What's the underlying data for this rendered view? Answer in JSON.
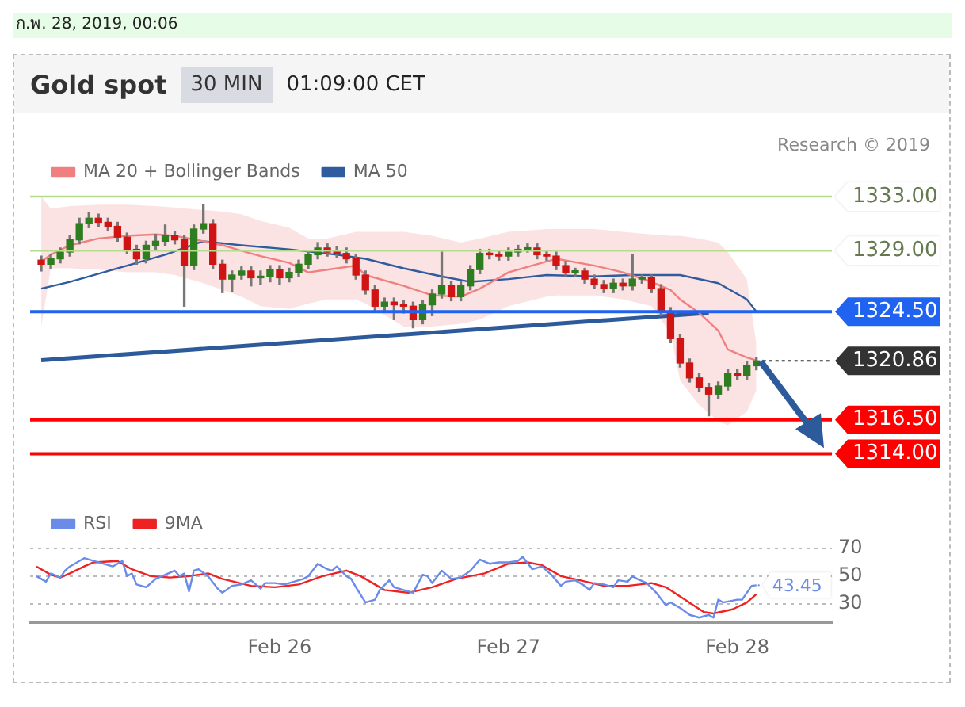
{
  "chart_data": [
    {
      "type": "candlestick",
      "title": "Gold spot",
      "subtitle": "30 MIN",
      "annotations": [
        "ก.พ. 28, 2019, 00:06",
        "01:09:00 CET",
        "Research © 2019"
      ],
      "x": [
        "2019-02-24T23:00",
        "2019-02-25T00:00",
        "2019-02-25T01:00",
        "2019-02-25T02:00",
        "2019-02-25T03:00",
        "2019-02-25T04:00",
        "2019-02-25T05:00",
        "2019-02-25T06:00",
        "2019-02-25T07:00",
        "2019-02-25T08:00",
        "2019-02-25T09:00",
        "2019-02-25T10:00",
        "2019-02-25T11:00",
        "2019-02-25T12:00",
        "2019-02-25T13:00",
        "2019-02-25T14:00",
        "2019-02-25T15:00",
        "2019-02-25T16:00",
        "2019-02-25T17:00",
        "2019-02-25T18:00",
        "2019-02-25T19:00",
        "2019-02-25T20:00",
        "2019-02-25T21:00",
        "2019-02-25T22:00",
        "2019-02-25T23:00",
        "2019-02-26T00:00",
        "2019-02-26T01:00",
        "2019-02-26T02:00",
        "2019-02-26T03:00",
        "2019-02-26T04:00",
        "2019-02-26T05:00",
        "2019-02-26T06:00",
        "2019-02-26T07:00",
        "2019-02-26T08:00",
        "2019-02-26T09:00",
        "2019-02-26T10:00",
        "2019-02-26T11:00",
        "2019-02-26T12:00",
        "2019-02-26T13:00",
        "2019-02-26T14:00",
        "2019-02-26T15:00",
        "2019-02-26T16:00",
        "2019-02-26T17:00",
        "2019-02-26T18:00",
        "2019-02-26T19:00",
        "2019-02-26T20:00",
        "2019-02-26T21:00",
        "2019-02-26T22:00",
        "2019-02-26T23:00",
        "2019-02-27T00:00",
        "2019-02-27T01:00",
        "2019-02-27T02:00",
        "2019-02-27T03:00",
        "2019-02-27T04:00",
        "2019-02-27T05:00",
        "2019-02-27T06:00",
        "2019-02-27T07:00",
        "2019-02-27T08:00",
        "2019-02-27T09:00",
        "2019-02-27T10:00",
        "2019-02-27T11:00",
        "2019-02-27T12:00",
        "2019-02-27T13:00",
        "2019-02-27T14:00",
        "2019-02-27T15:00",
        "2019-02-27T16:00",
        "2019-02-27T17:00",
        "2019-02-27T18:00",
        "2019-02-27T19:00",
        "2019-02-27T20:00",
        "2019-02-27T21:00",
        "2019-02-27T22:00",
        "2019-02-27T23:00",
        "2019-02-28T00:00",
        "2019-02-28T01:00",
        "2019-02-28T02:00"
      ],
      "ohlc": [
        [
          1328.3,
          1328.6,
          1327.5,
          1328.0
        ],
        [
          1328.0,
          1328.7,
          1327.7,
          1328.4
        ],
        [
          1328.4,
          1329.2,
          1328.1,
          1328.9
        ],
        [
          1328.9,
          1330.1,
          1328.6,
          1329.8
        ],
        [
          1329.8,
          1331.4,
          1329.5,
          1331.0
        ],
        [
          1331.0,
          1331.8,
          1330.7,
          1331.4
        ],
        [
          1331.4,
          1331.7,
          1330.8,
          1331.1
        ],
        [
          1331.1,
          1331.4,
          1330.5,
          1330.8
        ],
        [
          1330.8,
          1331.1,
          1329.7,
          1330.0
        ],
        [
          1330.0,
          1330.3,
          1328.8,
          1329.1
        ],
        [
          1329.1,
          1329.4,
          1328.0,
          1328.4
        ],
        [
          1328.4,
          1329.7,
          1328.1,
          1329.4
        ],
        [
          1329.4,
          1330.2,
          1329.1,
          1329.7
        ],
        [
          1329.7,
          1330.9,
          1329.4,
          1330.1
        ],
        [
          1330.1,
          1330.4,
          1329.5,
          1329.8
        ],
        [
          1329.8,
          1330.1,
          1324.9,
          1327.9
        ],
        [
          1327.9,
          1330.9,
          1327.6,
          1330.6
        ],
        [
          1330.6,
          1332.4,
          1330.3,
          1331.0
        ],
        [
          1331.0,
          1331.3,
          1327.7,
          1328.0
        ],
        [
          1328.0,
          1328.3,
          1325.9,
          1326.9
        ],
        [
          1326.9,
          1327.5,
          1326.0,
          1327.2
        ],
        [
          1327.2,
          1327.8,
          1326.9,
          1327.5
        ],
        [
          1327.5,
          1327.8,
          1326.4,
          1327.0
        ],
        [
          1327.0,
          1327.5,
          1326.5,
          1327.1
        ],
        [
          1327.1,
          1327.9,
          1326.7,
          1327.6
        ],
        [
          1327.6,
          1327.9,
          1326.5,
          1327.0
        ],
        [
          1327.0,
          1327.7,
          1326.7,
          1327.4
        ],
        [
          1327.4,
          1328.3,
          1327.1,
          1328.0
        ],
        [
          1328.0,
          1329.0,
          1327.7,
          1328.7
        ],
        [
          1328.7,
          1329.6,
          1328.4,
          1329.2
        ],
        [
          1329.2,
          1329.5,
          1328.6,
          1328.9
        ],
        [
          1328.9,
          1329.3,
          1328.5,
          1328.8
        ],
        [
          1328.8,
          1329.2,
          1328.1,
          1328.4
        ],
        [
          1328.4,
          1328.7,
          1326.9,
          1327.2
        ],
        [
          1327.2,
          1327.5,
          1325.8,
          1326.1
        ],
        [
          1326.1,
          1326.4,
          1324.5,
          1324.9
        ],
        [
          1324.9,
          1325.5,
          1324.6,
          1325.2
        ],
        [
          1325.2,
          1325.5,
          1323.9,
          1325.0
        ],
        [
          1325.0,
          1325.3,
          1324.4,
          1324.9
        ],
        [
          1324.9,
          1325.2,
          1323.3,
          1323.9
        ],
        [
          1323.9,
          1325.3,
          1323.6,
          1325.0
        ],
        [
          1325.0,
          1326.1,
          1324.2,
          1325.8
        ],
        [
          1325.8,
          1328.9,
          1325.5,
          1326.4
        ],
        [
          1326.4,
          1326.7,
          1325.3,
          1325.6
        ],
        [
          1325.6,
          1326.7,
          1325.3,
          1326.4
        ],
        [
          1326.4,
          1327.9,
          1326.1,
          1327.6
        ],
        [
          1327.6,
          1329.1,
          1327.3,
          1328.8
        ],
        [
          1328.8,
          1329.1,
          1328.4,
          1328.7
        ],
        [
          1328.7,
          1329.0,
          1328.3,
          1328.6
        ],
        [
          1328.6,
          1329.2,
          1328.3,
          1328.9
        ],
        [
          1328.9,
          1329.4,
          1328.6,
          1329.1
        ],
        [
          1329.1,
          1329.5,
          1328.9,
          1329.2
        ],
        [
          1329.2,
          1329.5,
          1328.4,
          1328.7
        ],
        [
          1328.7,
          1329.0,
          1328.3,
          1328.6
        ],
        [
          1328.6,
          1328.9,
          1327.6,
          1327.9
        ],
        [
          1327.9,
          1328.2,
          1327.1,
          1327.4
        ],
        [
          1327.4,
          1327.7,
          1327.1,
          1327.5
        ],
        [
          1327.5,
          1327.7,
          1326.6,
          1326.9
        ],
        [
          1326.9,
          1327.2,
          1326.2,
          1326.5
        ],
        [
          1326.5,
          1326.8,
          1325.9,
          1326.2
        ],
        [
          1326.2,
          1326.9,
          1325.9,
          1326.6
        ],
        [
          1326.6,
          1326.9,
          1326.1,
          1326.4
        ],
        [
          1326.4,
          1328.7,
          1326.1,
          1326.9
        ],
        [
          1326.9,
          1327.2,
          1326.6,
          1327.0
        ],
        [
          1327.0,
          1327.2,
          1325.9,
          1326.2
        ],
        [
          1326.2,
          1326.5,
          1324.2,
          1324.5
        ],
        [
          1324.5,
          1324.8,
          1322.2,
          1322.5
        ],
        [
          1322.5,
          1322.8,
          1320.4,
          1320.7
        ],
        [
          1320.7,
          1321.0,
          1319.3,
          1319.6
        ],
        [
          1319.6,
          1319.9,
          1318.6,
          1318.9
        ],
        [
          1318.9,
          1319.2,
          1316.8,
          1318.4
        ],
        [
          1318.4,
          1319.3,
          1318.1,
          1319.0
        ],
        [
          1319.0,
          1320.2,
          1318.7,
          1319.9
        ],
        [
          1319.9,
          1320.2,
          1319.5,
          1319.8
        ],
        [
          1319.8,
          1320.8,
          1319.5,
          1320.5
        ],
        [
          1320.5,
          1321.1,
          1320.2,
          1320.86
        ]
      ],
      "series": [
        {
          "name": "MA 20 + Bollinger Bands",
          "type": "line",
          "color": "#f08080",
          "x": [
            "2019-02-24T23:00",
            "2019-02-25T00:00",
            "2019-02-25T02:00",
            "2019-02-25T05:00",
            "2019-02-25T08:00",
            "2019-02-25T11:00",
            "2019-02-25T13:00",
            "2019-02-25T16:00",
            "2019-02-25T18:00",
            "2019-02-25T20:00",
            "2019-02-25T22:00",
            "2019-02-26T01:00",
            "2019-02-26T03:00",
            "2019-02-26T05:00",
            "2019-02-26T08:00",
            "2019-02-26T09:00",
            "2019-02-26T13:00",
            "2019-02-26T16:00",
            "2019-02-26T19:00",
            "2019-02-26T21:00",
            "2019-02-27T00:00",
            "2019-02-27T04:00",
            "2019-02-27T05:00",
            "2019-02-27T09:00",
            "2019-02-27T12:00",
            "2019-02-27T15:00",
            "2019-02-27T17:00",
            "2019-02-27T18:00",
            "2019-02-27T20:00",
            "2019-02-27T22:00",
            "2019-02-27T23:00",
            "2019-02-28T01:00",
            "2019-02-28T02:00"
          ],
          "values": [
            1328.2,
            1328.7,
            1329.4,
            1329.9,
            1330.1,
            1330.2,
            1330.1,
            1329.7,
            1329.4,
            1329.0,
            1328.6,
            1328.1,
            1327.4,
            1327.6,
            1327.9,
            1327.2,
            1326.4,
            1325.7,
            1325.6,
            1326.2,
            1327.4,
            1328.2,
            1328.4,
            1327.9,
            1327.4,
            1326.7,
            1326.1,
            1325.4,
            1324.4,
            1323.1,
            1321.7,
            1321.1,
            1320.9
          ],
          "upper": [
            1333.0,
            1332.1,
            1332.3,
            1332.4,
            1332.4,
            1332.3,
            1332.2,
            1332.0,
            1331.9,
            1331.7,
            1331.2,
            1330.7,
            1329.9,
            1329.9,
            1330.4,
            1330.4,
            1330.4,
            1330.1,
            1329.6,
            1329.9,
            1330.4,
            1330.6,
            1330.6,
            1330.6,
            1330.4,
            1330.2,
            1330.1,
            1330.1,
            1329.9,
            1329.6,
            1328.9,
            1326.9,
            1322.1
          ],
          "lower": [
            1323.4,
            1327.7,
            1327.7,
            1327.6,
            1327.4,
            1327.4,
            1327.2,
            1326.6,
            1326.1,
            1325.6,
            1324.9,
            1324.7,
            1325.1,
            1325.4,
            1325.4,
            1325.1,
            1323.4,
            1323.4,
            1323.6,
            1323.9,
            1324.9,
            1325.6,
            1325.7,
            1325.7,
            1325.4,
            1324.9,
            1322.9,
            1319.4,
            1317.6,
            1316.4,
            1316.1,
            1317.1,
            1318.7
          ]
        },
        {
          "name": "MA 50",
          "type": "line",
          "color": "#2f5c9e",
          "x": [
            "2019-02-24T23:00",
            "2019-02-25T02:00",
            "2019-02-25T08:00",
            "2019-02-25T12:00",
            "2019-02-25T16:00",
            "2019-02-25T20:00",
            "2019-02-26T01:00",
            "2019-02-26T06:00",
            "2019-02-26T09:00",
            "2019-02-26T13:00",
            "2019-02-26T17:00",
            "2019-02-26T20:00",
            "2019-02-27T00:00",
            "2019-02-27T04:00",
            "2019-02-27T09:00",
            "2019-02-27T13:00",
            "2019-02-27T18:00",
            "2019-02-27T22:00",
            "2019-02-28T01:00",
            "2019-02-28T02:00"
          ],
          "values": [
            1326.2,
            1326.7,
            1327.9,
            1328.7,
            1329.7,
            1329.4,
            1329.1,
            1328.7,
            1328.4,
            1327.7,
            1327.1,
            1326.7,
            1326.9,
            1327.2,
            1327.1,
            1327.2,
            1327.2,
            1326.6,
            1325.4,
            1324.5
          ]
        },
        {
          "type": "line",
          "color": "#2d5a9a",
          "x": [
            "2019-02-24T23:00",
            "2019-02-27T21:00"
          ],
          "values": [
            1320.9,
            1324.4
          ]
        }
      ],
      "ref_lines": [
        {
          "axis": "y",
          "value": 1333,
          "color": "#b5dc8c"
        },
        {
          "axis": "y",
          "value": 1329,
          "color": "#b5dc8c"
        },
        {
          "axis": "y",
          "value": 1324.5,
          "color": "#1f63f0"
        },
        {
          "axis": "y",
          "value": 1320.86,
          "color": "#333333",
          "line_style": "dotted"
        },
        {
          "axis": "y",
          "value": 1316.5,
          "color": "#ff0000"
        },
        {
          "axis": "y",
          "value": 1314,
          "color": "#ff0000"
        }
      ],
      "yticks": [
        {
          "value": 1333,
          "label": "1333.00"
        },
        {
          "value": 1329,
          "label": "1329.00"
        },
        {
          "value": 1324.5,
          "label": "1324.50"
        },
        {
          "value": 1320.86,
          "label": "1320.86"
        },
        {
          "value": 1316.5,
          "label": "1316.50"
        },
        {
          "value": 1314,
          "label": "1314.00"
        }
      ],
      "xlim": [
        "2019-02-24T21:50",
        "2019-02-28T09:55"
      ],
      "ylim": [
        1314,
        1333
      ],
      "tick_labels": "y",
      "legend": "top left"
    },
    {
      "type": "line",
      "annotations": [
        {
          "text": "43.45",
          "x": "2019-02-28T02:00",
          "y": 43.45
        }
      ],
      "series": [
        {
          "name": "RSI",
          "color": "#6a8be8",
          "x": [
            "2019-02-24T22:30",
            "2019-02-24T23:30",
            "2019-02-25T00:00",
            "2019-02-25T01:00",
            "2019-02-25T01:30",
            "2019-02-25T02:00",
            "2019-02-25T03:00",
            "2019-02-25T03:30",
            "2019-02-25T04:30",
            "2019-02-25T05:30",
            "2019-02-25T06:30",
            "2019-02-25T07:30",
            "2019-02-25T08:00",
            "2019-02-25T08:30",
            "2019-02-25T09:00",
            "2019-02-25T10:00",
            "2019-02-25T11:00",
            "2019-02-25T12:00",
            "2019-02-25T13:00",
            "2019-02-25T13:30",
            "2019-02-25T14:00",
            "2019-02-25T14:30",
            "2019-02-25T15:00",
            "2019-02-25T15:30",
            "2019-02-25T16:30",
            "2019-02-25T17:30",
            "2019-02-25T18:00",
            "2019-02-25T19:00",
            "2019-02-25T20:00",
            "2019-02-25T21:00",
            "2019-02-25T22:00",
            "2019-02-25T22:30",
            "2019-02-25T23:30",
            "2019-02-26T00:30",
            "2019-02-26T01:30",
            "2019-02-26T02:30",
            "2019-02-26T03:00",
            "2019-02-26T04:00",
            "2019-02-26T05:00",
            "2019-02-26T05:30",
            "2019-02-26T06:00",
            "2019-02-26T07:00",
            "2019-02-26T07:30",
            "2019-02-26T08:00",
            "2019-02-26T09:00",
            "2019-02-26T10:00",
            "2019-02-26T10:30",
            "2019-02-26T11:30",
            "2019-02-26T12:00",
            "2019-02-26T13:00",
            "2019-02-26T14:00",
            "2019-02-26T15:00",
            "2019-02-26T15:30",
            "2019-02-26T16:00",
            "2019-02-26T17:00",
            "2019-02-26T18:00",
            "2019-02-26T19:00",
            "2019-02-26T20:00",
            "2019-02-26T21:00",
            "2019-02-26T22:00",
            "2019-02-26T23:00",
            "2019-02-27T00:00",
            "2019-02-27T01:00",
            "2019-02-27T01:30",
            "2019-02-27T02:30",
            "2019-02-27T03:30",
            "2019-02-27T04:30",
            "2019-02-27T05:30",
            "2019-02-27T06:00",
            "2019-02-27T07:00",
            "2019-02-27T08:00",
            "2019-02-27T08:30",
            "2019-02-27T09:00",
            "2019-02-27T10:00",
            "2019-02-27T11:00",
            "2019-02-27T11:30",
            "2019-02-27T12:30",
            "2019-02-27T13:00",
            "2019-02-27T13:30",
            "2019-02-27T14:30",
            "2019-02-27T15:30",
            "2019-02-27T16:30",
            "2019-02-27T17:00",
            "2019-02-27T18:00",
            "2019-02-27T19:00",
            "2019-02-27T20:00",
            "2019-02-27T21:00",
            "2019-02-27T21:30",
            "2019-02-27T22:00",
            "2019-02-27T22:30",
            "2019-02-28T00:00",
            "2019-02-28T00:30",
            "2019-02-28T01:30",
            "2019-02-28T02:00"
          ],
          "values": [
            50,
            46,
            52,
            49,
            54,
            57,
            61,
            63,
            61,
            59,
            57,
            61,
            50,
            52,
            44,
            42,
            48,
            51,
            54,
            50,
            52,
            39,
            54,
            55,
            50,
            41,
            38,
            43,
            44,
            47,
            41,
            45,
            45,
            44,
            46,
            48,
            50,
            59,
            55,
            54,
            57,
            50,
            48,
            42,
            31,
            33,
            40,
            47,
            42,
            40,
            38,
            51,
            50,
            45,
            54,
            48,
            49,
            54,
            62,
            59,
            60,
            60,
            61,
            64,
            55,
            57,
            51,
            43,
            46,
            47,
            43,
            40,
            45,
            44,
            42,
            47,
            46,
            50,
            48,
            45,
            38,
            29,
            31,
            27,
            22,
            20,
            22,
            20,
            33,
            31,
            33,
            33,
            43,
            43.45
          ]
        },
        {
          "name": "9MA",
          "color": "#ee2222",
          "x": [
            "2019-02-24T22:30",
            "2019-02-25T00:00",
            "2019-02-25T01:00",
            "2019-02-25T02:00",
            "2019-02-25T03:30",
            "2019-02-25T04:30",
            "2019-02-25T07:00",
            "2019-02-25T08:30",
            "2019-02-25T10:30",
            "2019-02-25T12:30",
            "2019-02-25T14:30",
            "2019-02-25T16:30",
            "2019-02-25T18:00",
            "2019-02-25T21:00",
            "2019-02-25T23:30",
            "2019-02-26T02:00",
            "2019-02-26T04:30",
            "2019-02-26T07:00",
            "2019-02-26T08:30",
            "2019-02-26T11:00",
            "2019-02-26T13:30",
            "2019-02-26T16:00",
            "2019-02-26T18:30",
            "2019-02-26T21:30",
            "2019-02-27T00:00",
            "2019-02-27T02:00",
            "2019-02-27T03:30",
            "2019-02-27T05:30",
            "2019-02-27T07:30",
            "2019-02-27T10:00",
            "2019-02-27T12:30",
            "2019-02-27T15:00",
            "2019-02-27T16:30",
            "2019-02-27T18:30",
            "2019-02-27T20:30",
            "2019-02-27T21:30",
            "2019-02-27T23:30",
            "2019-02-28T01:00",
            "2019-02-28T02:00"
          ],
          "values": [
            57,
            51,
            49,
            52,
            57,
            60,
            61,
            55,
            50,
            49,
            50,
            52,
            48,
            43,
            42,
            44,
            50,
            54,
            50,
            40,
            38,
            42,
            48,
            52,
            59,
            60,
            58,
            50,
            47,
            43,
            43,
            45,
            42,
            33,
            24,
            23,
            26,
            31,
            37
          ]
        }
      ],
      "xlim": [
        "2019-02-24T21:50",
        "2019-02-28T09:55"
      ],
      "xticks": [
        {
          "value": "2019-02-26",
          "label": "Feb 26"
        },
        {
          "value": "2019-02-27",
          "label": "Feb 27"
        },
        {
          "value": "2019-02-28",
          "label": "Feb 28"
        }
      ],
      "ylim": [
        16.6,
        70
      ],
      "yticks": [
        30,
        50,
        70
      ],
      "grid": "y",
      "legend": "top left"
    }
  ]
}
